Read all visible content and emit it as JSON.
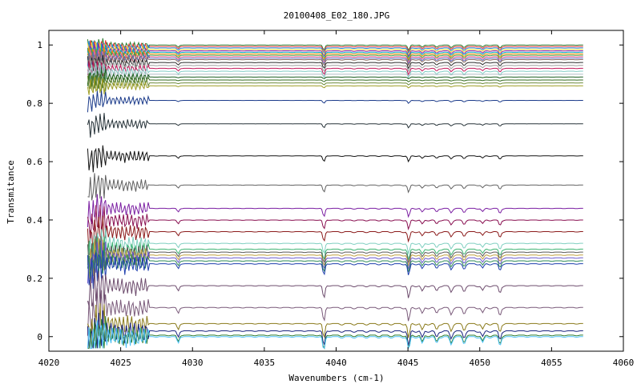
{
  "chart_data": {
    "type": "line",
    "title": "20100408_E02_180.JPG",
    "xlabel": "Wavenumbers (cm-1)",
    "ylabel": "Transmitance",
    "xlim": [
      4020,
      4060
    ],
    "ylim": [
      -0.05,
      1.05
    ],
    "x_ticks": [
      "4020",
      "4025",
      "4030",
      "4035",
      "4040",
      "4045",
      "4050",
      "4055",
      "4060"
    ],
    "y_ticks": [
      "0",
      "0.2",
      "0.4",
      "0.6",
      "0.8",
      "1"
    ],
    "x_range": [
      4022.7,
      4057.2
    ],
    "grid": false,
    "legend": "none",
    "series": [
      {
        "baseline": 1.0,
        "color": "#2e7d32"
      },
      {
        "baseline": 0.995,
        "color": "#e53935"
      },
      {
        "baseline": 0.99,
        "color": "#1e88e5"
      },
      {
        "baseline": 0.985,
        "color": "#fdd835"
      },
      {
        "baseline": 0.98,
        "color": "#8e24aa"
      },
      {
        "baseline": 0.975,
        "color": "#00acc1"
      },
      {
        "baseline": 0.97,
        "color": "#fb8c00"
      },
      {
        "baseline": 0.965,
        "color": "#43a047"
      },
      {
        "baseline": 0.96,
        "color": "#f06292"
      },
      {
        "baseline": 0.955,
        "color": "#5c6bc0"
      },
      {
        "baseline": 0.95,
        "color": "#8d6e63"
      },
      {
        "baseline": 0.94,
        "color": "#2b2b2b"
      },
      {
        "baseline": 0.93,
        "color": "#9e9e9e"
      },
      {
        "baseline": 0.92,
        "color": "#c2185b"
      },
      {
        "baseline": 0.91,
        "color": "#80cbc4"
      },
      {
        "baseline": 0.9,
        "color": "#b0bec5"
      },
      {
        "baseline": 0.89,
        "color": "#1b5e20"
      },
      {
        "baseline": 0.88,
        "color": "#33691e"
      },
      {
        "baseline": 0.87,
        "color": "#6d8b3a"
      },
      {
        "baseline": 0.86,
        "color": "#9e9d24"
      },
      {
        "baseline": 0.81,
        "color": "#1a3a8a"
      },
      {
        "baseline": 0.73,
        "color": "#263238"
      },
      {
        "baseline": 0.62,
        "color": "#111111"
      },
      {
        "baseline": 0.52,
        "color": "#616161"
      },
      {
        "baseline": 0.44,
        "color": "#7b1fa2"
      },
      {
        "baseline": 0.4,
        "color": "#880e4f"
      },
      {
        "baseline": 0.36,
        "color": "#8b1a1a"
      },
      {
        "baseline": 0.32,
        "color": "#7fcfc0"
      },
      {
        "baseline": 0.3,
        "color": "#3cb371"
      },
      {
        "baseline": 0.29,
        "color": "#5a5a5a"
      },
      {
        "baseline": 0.28,
        "color": "#c0a040"
      },
      {
        "baseline": 0.27,
        "color": "#6a5acd"
      },
      {
        "baseline": 0.26,
        "color": "#2e8b57"
      },
      {
        "baseline": 0.25,
        "color": "#1f3fae"
      },
      {
        "baseline": 0.175,
        "color": "#6d4c6d"
      },
      {
        "baseline": 0.1,
        "color": "#7a5a7a"
      },
      {
        "baseline": 0.045,
        "color": "#8a7a1a"
      },
      {
        "baseline": 0.02,
        "color": "#1a237e"
      },
      {
        "baseline": 0.005,
        "color": "#2e7d32"
      },
      {
        "baseline": 0.0,
        "color": "#4fc3f7"
      }
    ]
  }
}
